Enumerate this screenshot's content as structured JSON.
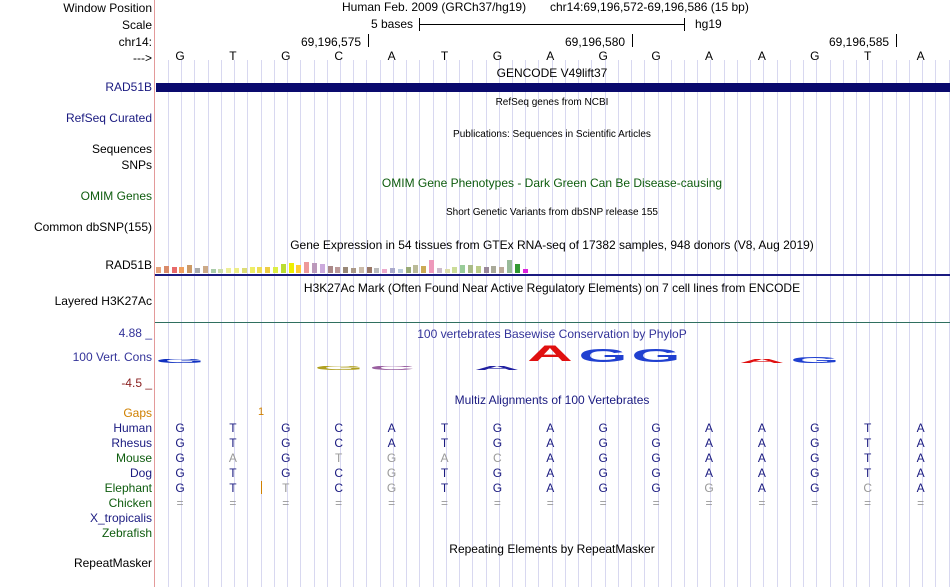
{
  "header": {
    "window_position_label": "Window Position",
    "scale_label": "Scale",
    "chrom_label": "chr14:",
    "arrow_label": "--->",
    "assembly": "Human Feb. 2009 (GRCh37/hg19)",
    "position": "chr14:69,196,572-69,196,586 (15 bp)",
    "scale_text": "5 bases",
    "db": "hg19",
    "coord_ticks": [
      "69,196,575",
      "69,196,580",
      "69,196,585"
    ]
  },
  "sequence": [
    "G",
    "T",
    "G",
    "C",
    "A",
    "T",
    "G",
    "A",
    "G",
    "G",
    "A",
    "A",
    "G",
    "T",
    "A"
  ],
  "tracks": {
    "gencode": {
      "title": "GENCODE V49lift37",
      "label": "RAD51B",
      "color": "#0a0a6e"
    },
    "refseq": {
      "title": "RefSeq genes from NCBI",
      "label": "RefSeq Curated"
    },
    "publications": {
      "title": "Publications: Sequences in Scientific Articles",
      "label1": "Sequences",
      "label2": "SNPs"
    },
    "omim": {
      "title": "OMIM Gene Phenotypes - Dark Green Can Be Disease-causing",
      "label": "OMIM Genes",
      "color": "#0e5c0e"
    },
    "dbsnp": {
      "title": "Short Genetic Variants from dbSNP release 155",
      "label": "Common dbSNP(155)"
    },
    "gtex": {
      "title": "Gene Expression in 54 tissues from GTEx RNA-seq of 17382 samples, 948 donors (V8, Aug 2019)",
      "label": "RAD51B",
      "bars": [
        {
          "c": "#e6a37a",
          "v": 0.8
        },
        {
          "c": "#d98a6a",
          "v": 0.9
        },
        {
          "c": "#e86a6a",
          "v": 0.7
        },
        {
          "c": "#f0a060",
          "v": 0.8
        },
        {
          "c": "#cc9966",
          "v": 1.0
        },
        {
          "c": "#aaaaaa",
          "v": 0.6
        },
        {
          "c": "#ccaa88",
          "v": 0.9
        },
        {
          "c": "#aaccaa",
          "v": 0.5
        },
        {
          "c": "#ccddaa",
          "v": 0.5
        },
        {
          "c": "#eeee99",
          "v": 0.6
        },
        {
          "c": "#eeee88",
          "v": 0.6
        },
        {
          "c": "#dddd77",
          "v": 0.6
        },
        {
          "c": "#eeee66",
          "v": 0.7
        },
        {
          "c": "#eedd55",
          "v": 0.7
        },
        {
          "c": "#eecc44",
          "v": 0.7
        },
        {
          "c": "#ddee44",
          "v": 0.8
        },
        {
          "c": "#bbdd33",
          "v": 1.1
        },
        {
          "c": "#eeee00",
          "v": 1.2
        },
        {
          "c": "#ffcc33",
          "v": 1.0
        },
        {
          "c": "#ee9999",
          "v": 1.4
        },
        {
          "c": "#bb99bb",
          "v": 1.3
        },
        {
          "c": "#ccaadd",
          "v": 1.1
        },
        {
          "c": "#aa8888",
          "v": 0.9
        },
        {
          "c": "#bb9999",
          "v": 0.8
        },
        {
          "c": "#998877",
          "v": 0.7
        },
        {
          "c": "#aa9988",
          "v": 0.6
        },
        {
          "c": "#ccbbaa",
          "v": 0.8
        },
        {
          "c": "#997766",
          "v": 0.7
        },
        {
          "c": "#bbbbbb",
          "v": 0.6
        },
        {
          "c": "#eeaacc",
          "v": 0.5
        },
        {
          "c": "#aaaacc",
          "v": 0.6
        },
        {
          "c": "#bbccdd",
          "v": 0.5
        },
        {
          "c": "#99aa77",
          "v": 0.7
        },
        {
          "c": "#bbbb99",
          "v": 1.0
        },
        {
          "c": "#ccaa55",
          "v": 0.9
        },
        {
          "c": "#ee99bb",
          "v": 1.6
        },
        {
          "c": "#ccbbcc",
          "v": 0.6
        },
        {
          "c": "#ddddaa",
          "v": 0.5
        },
        {
          "c": "#ccdd99",
          "v": 0.8
        },
        {
          "c": "#99cc99",
          "v": 1.0
        },
        {
          "c": "#aabb88",
          "v": 1.0
        },
        {
          "c": "#bbcc88",
          "v": 0.9
        },
        {
          "c": "#998899",
          "v": 0.8
        },
        {
          "c": "#aaaa99",
          "v": 0.9
        },
        {
          "c": "#bbaa99",
          "v": 0.8
        },
        {
          "c": "#99bb99",
          "v": 1.6
        },
        {
          "c": "#339933",
          "v": 1.1
        },
        {
          "c": "#dd22dd",
          "v": 0.5
        }
      ]
    },
    "h3k27ac": {
      "title": "H3K27Ac Mark (Often Found Near Active Regulatory Elements) on 7 cell lines from ENCODE",
      "label": "Layered H3K27Ac"
    },
    "phylop": {
      "title": "100 vertebrates Basewise Conservation by PhyloP",
      "label": "100 Vert. Cons",
      "max": "4.88 _",
      "min": "-4.5 _",
      "color": "#333399",
      "logo": [
        {
          "l": "G",
          "c": "#1030c0",
          "h": 0.15,
          "above": true
        },
        {
          "l": "G",
          "c": "#b0a020",
          "h": 0.2,
          "above": false
        },
        {
          "l": "C",
          "c": "#9a60a0",
          "h": 0.12,
          "above": false
        },
        {
          "l": "A",
          "c": "#2020a0",
          "h": 0.12,
          "above": false
        },
        {
          "l": "A",
          "c": "#e01010",
          "h": 1.0,
          "above": true
        },
        {
          "l": "G",
          "c": "#2040d0",
          "h": 0.8,
          "above": true
        },
        {
          "l": "G",
          "c": "#2040d0",
          "h": 0.8,
          "above": true
        },
        {
          "l": "A",
          "c": "#e01010",
          "h": 0.25,
          "above": true
        },
        {
          "l": "G",
          "c": "#2040d0",
          "h": 0.35,
          "above": true
        }
      ]
    },
    "multiz": {
      "title": "Multiz Alignments of 100 Vertebrates",
      "gaps_label": "Gaps",
      "gap_marker": "1",
      "species": [
        {
          "name": "Human",
          "color": "#1a1a80",
          "seq": [
            "G",
            "T",
            "G",
            "C",
            "A",
            "T",
            "G",
            "A",
            "G",
            "G",
            "A",
            "A",
            "G",
            "T",
            "A"
          ],
          "dim": []
        },
        {
          "name": "Rhesus",
          "color": "#1a1a80",
          "seq": [
            "G",
            "T",
            "G",
            "C",
            "A",
            "T",
            "G",
            "A",
            "G",
            "G",
            "A",
            "A",
            "G",
            "T",
            "A"
          ],
          "dim": []
        },
        {
          "name": "Mouse",
          "color": "#0e5c0e",
          "seq": [
            "G",
            "A",
            "G",
            "T",
            "G",
            "A",
            "C",
            "A",
            "G",
            "G",
            "A",
            "A",
            "G",
            "T",
            "A"
          ],
          "dim": [
            1,
            3,
            4,
            5,
            6
          ]
        },
        {
          "name": "Dog",
          "color": "#1a1a80",
          "seq": [
            "G",
            "T",
            "G",
            "C",
            "G",
            "T",
            "G",
            "A",
            "G",
            "G",
            "A",
            "A",
            "G",
            "T",
            "A"
          ],
          "dim": [
            4
          ]
        },
        {
          "name": "Elephant",
          "color": "#0e5c0e",
          "seq": [
            "G",
            "T",
            "T",
            "C",
            "G",
            "T",
            "G",
            "A",
            "G",
            "G",
            "G",
            "A",
            "G",
            "C",
            "A"
          ],
          "dim": [
            2,
            4,
            10,
            13
          ]
        },
        {
          "name": "Chicken",
          "color": "#0e5c0e",
          "seq": [
            "=",
            "=",
            "=",
            "=",
            "=",
            "=",
            "=",
            "=",
            "=",
            "=",
            "=",
            "=",
            "=",
            "=",
            "="
          ],
          "dim": [
            0,
            1,
            2,
            3,
            4,
            5,
            6,
            7,
            8,
            9,
            10,
            11,
            12,
            13,
            14
          ]
        },
        {
          "name": "X_tropicalis",
          "color": "#1a1a80",
          "seq": [],
          "dim": []
        },
        {
          "name": "Zebrafish",
          "color": "#0e5c0e",
          "seq": [],
          "dim": []
        }
      ]
    },
    "repeatmasker": {
      "title": "Repeating Elements by RepeatMasker",
      "label": "RepeatMasker"
    }
  }
}
